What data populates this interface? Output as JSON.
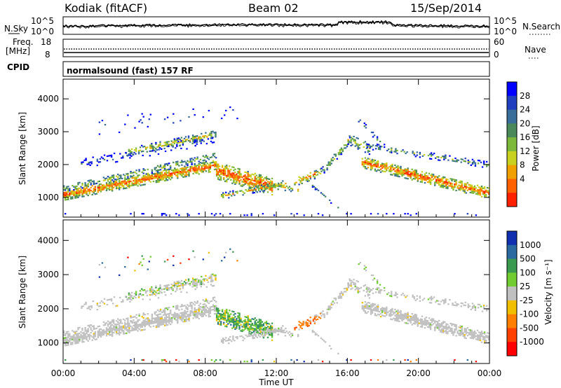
{
  "header": {
    "station": "Kodiak (fitACF)",
    "beam": "Beam 02",
    "date": "15/Sep/2014"
  },
  "strip_panels": {
    "noise": {
      "left_label": "N.Sky",
      "right_label": "N.Search",
      "left_ticks": [
        "10^5",
        "10^0"
      ],
      "right_ticks": [
        "10^5",
        "10^0"
      ]
    },
    "freq": {
      "left_label_1": "Freq.",
      "left_label_2": "[MHz]",
      "right_label": "Nave",
      "left_ticks": [
        "18",
        "8"
      ],
      "right_ticks": [
        "60",
        "0"
      ]
    },
    "cpid": {
      "label": "CPID",
      "program": "normalsound (fast) 157 RF"
    }
  },
  "chart_data": [
    {
      "type": "heatmap",
      "name": "power",
      "ylabel": "Slant Range [km]",
      "y_ticks": [
        1000,
        2000,
        3000,
        4000
      ],
      "ylim": [
        400,
        4600
      ],
      "x_ticks": [
        "00:00",
        "04:00",
        "08:00",
        "12:00",
        "16:00",
        "20:00",
        "00:00"
      ],
      "xlim_hours": [
        0,
        24
      ],
      "colorbar": {
        "label": "Power [dB]",
        "ticks": [
          "4",
          "8",
          "12",
          "16",
          "20",
          "24",
          "28"
        ],
        "colors": [
          "#0000ff",
          "#2040c0",
          "#3a6e9a",
          "#4a8a5a",
          "#7cb83a",
          "#c8d020",
          "#f0a000",
          "#ff6000",
          "#ff2000"
        ]
      }
    },
    {
      "type": "heatmap",
      "name": "velocity",
      "ylabel": "Slant Range [km]",
      "y_ticks": [
        1000,
        2000,
        3000,
        4000
      ],
      "ylim": [
        400,
        4600
      ],
      "x_ticks": [
        "00:00",
        "04:00",
        "08:00",
        "12:00",
        "16:00",
        "20:00",
        "00:00"
      ],
      "xlim_hours": [
        0,
        24
      ],
      "xlabel": "Time UT",
      "colorbar": {
        "label": "Velocity [m s⁻¹]",
        "ticks": [
          "1000",
          "500",
          "100",
          "25",
          "-25",
          "-100",
          "-500",
          "-1000"
        ],
        "colors": [
          "#1030b0",
          "#2a6aa0",
          "#3a9a50",
          "#70cc30",
          "#c0c0c0",
          "#f0c000",
          "#ff8000",
          "#ff4000",
          "#ff0000"
        ]
      }
    }
  ]
}
